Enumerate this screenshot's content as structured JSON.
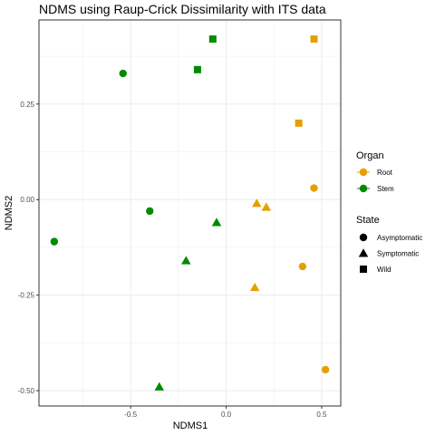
{
  "chart_data": {
    "type": "scatter",
    "title": "NDMS using Raup-Crick Dissimilarity with ITS data",
    "xlabel": "NDMS1",
    "ylabel": "NDMS2",
    "xlim": [
      -0.98,
      0.6
    ],
    "ylim": [
      -0.54,
      0.47
    ],
    "x_ticks": [
      {
        "value": -0.5,
        "label": "-0.5"
      },
      {
        "value": 0.0,
        "label": "0.0"
      },
      {
        "value": 0.5,
        "label": "0.5"
      }
    ],
    "y_ticks": [
      {
        "value": 0.25,
        "label": "0.25"
      },
      {
        "value": 0.0,
        "label": "0.00"
      },
      {
        "value": -0.25,
        "label": "-0.25"
      },
      {
        "value": -0.5,
        "label": "-0.50"
      }
    ],
    "grid": true,
    "legend_placement": "right",
    "colors": {
      "Root": "#E69F00",
      "Stem": "#008B00"
    },
    "legend": {
      "color_title": "Organ",
      "color_entries": [
        "Root",
        "Stem"
      ],
      "shape_title": "State",
      "shape_entries": [
        {
          "label": "Asymptomatic",
          "shape": "circle"
        },
        {
          "label": "Symptomatic",
          "shape": "triangle"
        },
        {
          "label": "Wild",
          "shape": "square"
        }
      ]
    },
    "points": [
      {
        "x": -0.54,
        "y": 0.33,
        "organ": "Stem",
        "state": "Asymptomatic"
      },
      {
        "x": -0.4,
        "y": -0.03,
        "organ": "Stem",
        "state": "Asymptomatic"
      },
      {
        "x": -0.9,
        "y": -0.11,
        "organ": "Stem",
        "state": "Asymptomatic"
      },
      {
        "x": -0.05,
        "y": -0.06,
        "organ": "Stem",
        "state": "Symptomatic"
      },
      {
        "x": -0.21,
        "y": -0.16,
        "organ": "Stem",
        "state": "Symptomatic"
      },
      {
        "x": -0.35,
        "y": -0.49,
        "organ": "Stem",
        "state": "Symptomatic"
      },
      {
        "x": -0.07,
        "y": 0.42,
        "organ": "Stem",
        "state": "Wild"
      },
      {
        "x": -0.15,
        "y": 0.34,
        "organ": "Stem",
        "state": "Wild"
      },
      {
        "x": 0.46,
        "y": 0.03,
        "organ": "Root",
        "state": "Asymptomatic"
      },
      {
        "x": 0.4,
        "y": -0.175,
        "organ": "Root",
        "state": "Asymptomatic"
      },
      {
        "x": 0.52,
        "y": -0.445,
        "organ": "Root",
        "state": "Asymptomatic"
      },
      {
        "x": 0.16,
        "y": -0.01,
        "organ": "Root",
        "state": "Symptomatic"
      },
      {
        "x": 0.21,
        "y": -0.02,
        "organ": "Root",
        "state": "Symptomatic"
      },
      {
        "x": 0.15,
        "y": -0.23,
        "organ": "Root",
        "state": "Symptomatic"
      },
      {
        "x": 0.46,
        "y": 0.42,
        "organ": "Root",
        "state": "Wild"
      },
      {
        "x": 0.38,
        "y": 0.2,
        "organ": "Root",
        "state": "Wild"
      }
    ]
  }
}
